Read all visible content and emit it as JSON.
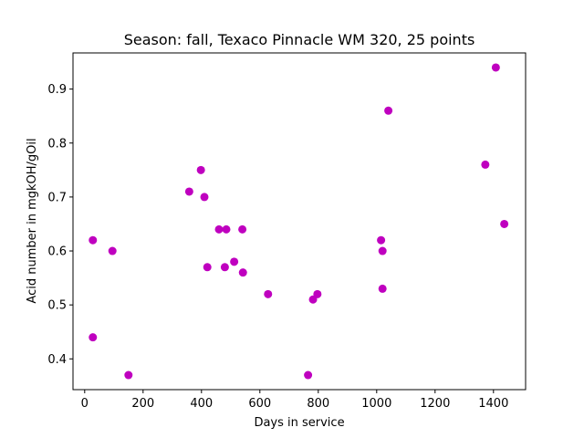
{
  "chart_data": {
    "type": "scatter",
    "title": "Season: fall, Texaco Pinnacle WM 320, 25 points",
    "xlabel": "Days in service",
    "ylabel": "Acid number in mgkOH/gOil",
    "xlim": [
      -40,
      1510
    ],
    "ylim": [
      0.343,
      0.967
    ],
    "x_ticks": [
      0,
      200,
      400,
      600,
      800,
      1000,
      1200,
      1400
    ],
    "y_ticks": [
      0.4,
      0.5,
      0.6,
      0.7,
      0.8,
      0.9
    ],
    "grid": false,
    "marker_color": "#bf00bf",
    "points": [
      {
        "x": 28,
        "y": 0.62
      },
      {
        "x": 28,
        "y": 0.44
      },
      {
        "x": 95,
        "y": 0.6
      },
      {
        "x": 150,
        "y": 0.37
      },
      {
        "x": 358,
        "y": 0.71
      },
      {
        "x": 398,
        "y": 0.75
      },
      {
        "x": 410,
        "y": 0.7
      },
      {
        "x": 420,
        "y": 0.57
      },
      {
        "x": 460,
        "y": 0.64
      },
      {
        "x": 480,
        "y": 0.57
      },
      {
        "x": 485,
        "y": 0.64
      },
      {
        "x": 512,
        "y": 0.58
      },
      {
        "x": 540,
        "y": 0.64
      },
      {
        "x": 542,
        "y": 0.56
      },
      {
        "x": 628,
        "y": 0.52
      },
      {
        "x": 765,
        "y": 0.37
      },
      {
        "x": 782,
        "y": 0.51
      },
      {
        "x": 797,
        "y": 0.52
      },
      {
        "x": 1015,
        "y": 0.62
      },
      {
        "x": 1020,
        "y": 0.6
      },
      {
        "x": 1020,
        "y": 0.53
      },
      {
        "x": 1040,
        "y": 0.86
      },
      {
        "x": 1372,
        "y": 0.76
      },
      {
        "x": 1408,
        "y": 0.94
      },
      {
        "x": 1437,
        "y": 0.65
      }
    ]
  }
}
